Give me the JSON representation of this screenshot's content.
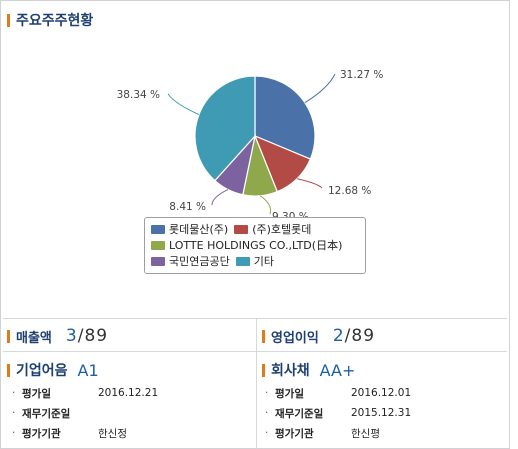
{
  "chart_data": {
    "type": "pie",
    "title": "주요주주현황",
    "slices": [
      {
        "name": "롯데물산(주)",
        "value": 31.27,
        "label": "31.27 %",
        "color": "#4a72a8"
      },
      {
        "name": "(주)호텔롯데",
        "value": 12.68,
        "label": "12.68 %",
        "color": "#b24b45"
      },
      {
        "name": "LOTTE HOLDINGS CO.,LTD(日本)",
        "value": 9.3,
        "label": "9.30 %",
        "color": "#8fa84c"
      },
      {
        "name": "국민연금공단",
        "value": 8.41,
        "label": "8.41 %",
        "color": "#7d62a0"
      },
      {
        "name": "기타",
        "value": 38.34,
        "label": "38.34 %",
        "color": "#3f9bb3"
      }
    ],
    "legend_placement": "bottom"
  },
  "stats": {
    "sales": {
      "label": "매출액",
      "rank": "3",
      "sep": "/",
      "total": "89"
    },
    "operating": {
      "label": "영업이익",
      "rank": "2",
      "sep": "/",
      "total": "89"
    }
  },
  "ratings": {
    "cp": {
      "label": "기업어음",
      "grade": "A1",
      "rows": [
        {
          "key": "평가일",
          "value": "2016.12.21"
        },
        {
          "key": "재무기준일",
          "value": ""
        },
        {
          "key": "평가기관",
          "value": "한신정"
        }
      ]
    },
    "bond": {
      "label": "회사채",
      "grade": "AA+",
      "rows": [
        {
          "key": "평가일",
          "value": "2016.12.01"
        },
        {
          "key": "재무기준일",
          "value": "2015.12.31"
        },
        {
          "key": "평가기관",
          "value": "한신평"
        }
      ]
    }
  },
  "accent_color": "#e07b1a"
}
